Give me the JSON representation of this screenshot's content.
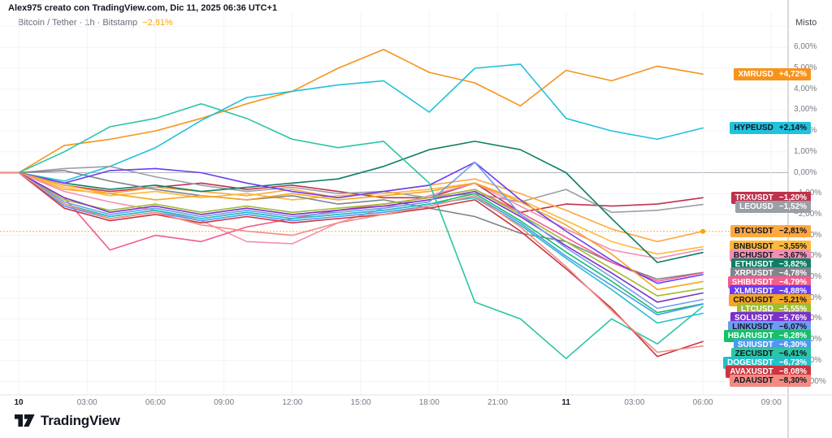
{
  "header": {
    "title": "Alex975 creato con TradingView.com, Dic 11, 2025 06:36 UTC+1"
  },
  "legend": {
    "symbol_info": "Bitcoin / Tether · 1h · Bitstamp",
    "change": "−2,81%",
    "change_color": "#F7A600"
  },
  "axis": {
    "mode": "Misto"
  },
  "footer": {
    "logo_text": "TradingView"
  },
  "chart_data": {
    "type": "line",
    "title": "Multi-symbol percent change comparison",
    "xlabel": "time",
    "ylabel": "percent change",
    "ylim": [
      -10.6,
      8.3
    ],
    "grid": {
      "horizontal_step_pct": 1,
      "vertical_step_hours": 3,
      "zero_line_color": "#B2B5BE",
      "grid_color": "#F0F3FA"
    },
    "x_hours": [
      0,
      2,
      4,
      6,
      8,
      10,
      12,
      14,
      16,
      18,
      20,
      22,
      24,
      26,
      28,
      30
    ],
    "x_ticks": [
      {
        "h": 0,
        "label": "10",
        "bold": true
      },
      {
        "h": 3,
        "label": "03:00",
        "bold": false
      },
      {
        "h": 6,
        "label": "06:00",
        "bold": false
      },
      {
        "h": 9,
        "label": "09:00",
        "bold": false
      },
      {
        "h": 12,
        "label": "12:00",
        "bold": false
      },
      {
        "h": 15,
        "label": "15:00",
        "bold": false
      },
      {
        "h": 18,
        "label": "18:00",
        "bold": false
      },
      {
        "h": 21,
        "label": "21:00",
        "bold": false
      },
      {
        "h": 24,
        "label": "11",
        "bold": true
      },
      {
        "h": 27,
        "label": "03:00",
        "bold": false
      },
      {
        "h": 30,
        "label": "06:00",
        "bold": false
      },
      {
        "h": 33,
        "label": "09:00",
        "bold": false
      }
    ],
    "y_ticks": [
      {
        "v": 6,
        "label": "6,00%"
      },
      {
        "v": 5,
        "label": "5,00%"
      },
      {
        "v": 4,
        "label": "4,00%"
      },
      {
        "v": 3,
        "label": "3,00%"
      },
      {
        "v": 2,
        "label": "2,00%"
      },
      {
        "v": 1,
        "label": "1,00%"
      },
      {
        "v": 0,
        "label": "0,00%"
      },
      {
        "v": -1,
        "label": "−1,00%"
      },
      {
        "v": -2,
        "label": "−2,00%"
      },
      {
        "v": -3,
        "label": "−3,00%"
      },
      {
        "v": -4,
        "label": "−4,00%"
      },
      {
        "v": -5,
        "label": "−5,00%"
      },
      {
        "v": -6,
        "label": "−6,00%"
      },
      {
        "v": -7,
        "label": "−7,00%"
      },
      {
        "v": -8,
        "label": "−8,00%"
      },
      {
        "v": -9,
        "label": "−9,00%"
      },
      {
        "v": -10,
        "label": "−10,00%"
      }
    ],
    "active_series": "BTCUSDT",
    "active_level_style": "dashed",
    "series": [
      {
        "name": "XMRUSD",
        "change": 4.72,
        "change_label": "+4,72%",
        "color": "#F7931A",
        "text": "#FFFFFF",
        "values": [
          0,
          1.3,
          1.6,
          2.0,
          2.6,
          3.3,
          3.9,
          5.0,
          5.9,
          4.8,
          4.3,
          3.2,
          4.9,
          4.4,
          5.1,
          4.72
        ]
      },
      {
        "name": "HYPEUSD",
        "change": 2.14,
        "change_label": "+2,14%",
        "color": "#22C1DC",
        "text": "#131722",
        "values": [
          0,
          -0.4,
          0.3,
          1.2,
          2.5,
          3.6,
          3.9,
          4.2,
          4.4,
          2.9,
          5.0,
          5.2,
          2.6,
          2.0,
          1.6,
          2.14
        ]
      },
      {
        "name": "TRXUSDT",
        "change": -1.2,
        "change_label": "−1,20%",
        "color": "#C0314B",
        "text": "#FFFFFF",
        "values": [
          0,
          -0.6,
          -0.9,
          -0.7,
          -0.5,
          -0.8,
          -0.6,
          -0.9,
          -1.2,
          -1.2,
          -0.5,
          -1.9,
          -1.5,
          -1.6,
          -1.5,
          -1.2
        ]
      },
      {
        "name": "LEOUSD",
        "change": -1.52,
        "change_label": "−1,52%",
        "color": "#9B9EA6",
        "text": "#FFFFFF",
        "values": [
          0,
          0.2,
          0.3,
          -0.2,
          -0.6,
          -0.9,
          -0.7,
          -1.0,
          -0.9,
          -1.2,
          -1.0,
          -1.4,
          -0.8,
          -1.9,
          -1.8,
          -1.52
        ]
      },
      {
        "name": "BTCUSDT",
        "change": -2.81,
        "change_label": "−2,81%",
        "color": "#FFA840",
        "text": "#131722",
        "values": [
          0,
          -0.8,
          -1.0,
          -0.7,
          -0.9,
          -1.1,
          -0.8,
          -1.2,
          -0.9,
          -0.6,
          -0.3,
          -1.0,
          -1.8,
          -2.7,
          -3.3,
          -2.81
        ]
      },
      {
        "name": "BNBUSDT",
        "change": -3.55,
        "change_label": "−3,55%",
        "color": "#FDB93C",
        "text": "#131722",
        "values": [
          0,
          -0.7,
          -1.1,
          -0.9,
          -1.2,
          -1.0,
          -1.3,
          -1.1,
          -1.0,
          -0.8,
          -0.5,
          -1.3,
          -2.3,
          -3.3,
          -3.9,
          -3.55
        ]
      },
      {
        "name": "BCHUSDT",
        "change": -3.67,
        "change_label": "−3,67%",
        "color": "#F48FB1",
        "text": "#131722",
        "values": [
          0,
          -0.9,
          -1.4,
          -1.8,
          -2.3,
          -3.3,
          -3.4,
          -2.4,
          -1.7,
          -1.1,
          -0.5,
          -1.6,
          -2.7,
          -3.7,
          -4.1,
          -3.67
        ]
      },
      {
        "name": "ETHUSDT",
        "change": -3.82,
        "change_label": "−3,82%",
        "color": "#0F7E64",
        "text": "#FFFFFF",
        "values": [
          0,
          -0.5,
          -0.8,
          -0.6,
          -0.9,
          -0.7,
          -0.5,
          -0.3,
          0.3,
          1.1,
          1.5,
          1.1,
          0.0,
          -2.2,
          -4.3,
          -3.82
        ]
      },
      {
        "name": "XRPUSDT",
        "change": -4.78,
        "change_label": "−4,78%",
        "color": "#80848D",
        "text": "#FFFFFF",
        "values": [
          0,
          0.1,
          -0.4,
          -0.8,
          -1.1,
          -1.3,
          -1.1,
          -1.5,
          -1.3,
          -1.7,
          -2.1,
          -2.9,
          -3.3,
          -4.3,
          -5.1,
          -4.78
        ]
      },
      {
        "name": "SHIBUSDT",
        "change": -4.79,
        "change_label": "−4,79%",
        "color": "#F25C8E",
        "text": "#FFFFFF",
        "values": [
          0,
          -1.2,
          -3.7,
          -3.0,
          -3.3,
          -2.6,
          -2.2,
          -1.8,
          -1.5,
          -1.2,
          -0.8,
          -1.9,
          -3.1,
          -4.3,
          -5.2,
          -4.79
        ]
      },
      {
        "name": "XLMUSDT",
        "change": -4.88,
        "change_label": "−4,88%",
        "color": "#6A3DF5",
        "text": "#FFFFFF",
        "values": [
          0,
          -0.5,
          0.1,
          0.2,
          0.0,
          -0.5,
          -0.9,
          -1.2,
          -0.9,
          -0.6,
          0.5,
          -1.3,
          -2.8,
          -4.2,
          -5.3,
          -4.88
        ]
      },
      {
        "name": "CROUSDT",
        "change": -5.21,
        "change_label": "−5,21%",
        "color": "#F5A623",
        "text": "#131722",
        "values": [
          0,
          -0.6,
          -1.0,
          -1.3,
          -1.1,
          -1.3,
          -1.0,
          -1.3,
          -1.1,
          -0.9,
          -0.5,
          -1.4,
          -2.5,
          -3.9,
          -5.6,
          -5.21
        ]
      },
      {
        "name": "LTCUSD",
        "change": -5.55,
        "change_label": "−5,55%",
        "color": "#A0BC2F",
        "text": "#FFFFFF",
        "values": [
          0,
          -1.3,
          -1.8,
          -1.5,
          -1.9,
          -1.6,
          -1.9,
          -1.7,
          -1.5,
          -1.2,
          -0.8,
          -2.0,
          -3.3,
          -4.6,
          -5.9,
          -5.55
        ]
      },
      {
        "name": "SOLUSDT",
        "change": -5.76,
        "change_label": "−5,76%",
        "color": "#7A32C9",
        "text": "#FFFFFF",
        "values": [
          0,
          -1.2,
          -1.9,
          -1.6,
          -2.0,
          -1.7,
          -2.0,
          -1.8,
          -1.6,
          -1.3,
          -0.9,
          -2.1,
          -3.5,
          -4.8,
          -6.2,
          -5.76
        ]
      },
      {
        "name": "LINKUSDT",
        "change": -6.07,
        "change_label": "−6,07%",
        "color": "#6E9BF4",
        "text": "#131722",
        "values": [
          0,
          -1.4,
          -2.0,
          -1.7,
          -2.1,
          -1.8,
          -2.1,
          -1.9,
          -1.7,
          -1.4,
          0.5,
          -2.0,
          -3.6,
          -5.0,
          -6.5,
          -6.07
        ]
      },
      {
        "name": "HBARUSDT",
        "change": -6.28,
        "change_label": "−6,28%",
        "color": "#17BE6B",
        "text": "#FFFFFF",
        "values": [
          0,
          -1.5,
          -2.1,
          -1.8,
          -2.2,
          -1.9,
          -2.2,
          -2.0,
          -1.8,
          -1.5,
          -1.0,
          -2.3,
          -3.8,
          -5.2,
          -6.7,
          -6.28
        ]
      },
      {
        "name": "SUIUSDT",
        "change": -6.3,
        "change_label": "−6,30%",
        "color": "#4C9AF0",
        "text": "#FFFFFF",
        "values": [
          0,
          -1.6,
          -2.2,
          -1.9,
          -2.3,
          -2.0,
          -2.3,
          -2.1,
          -1.9,
          -1.6,
          -1.1,
          -2.4,
          -4.0,
          -5.4,
          -6.8,
          -6.3
        ]
      },
      {
        "name": "ZECUSDT",
        "change": -6.41,
        "change_label": "−6,41%",
        "color": "#2CC5A5",
        "text": "#131722",
        "values": [
          0,
          1.0,
          2.2,
          2.6,
          3.3,
          2.6,
          1.6,
          1.2,
          1.5,
          -0.5,
          -6.2,
          -7.0,
          -8.9,
          -7.0,
          -8.2,
          -6.41
        ]
      },
      {
        "name": "DOGEUSDT",
        "change": -6.73,
        "change_label": "−6,73%",
        "color": "#25BFC9",
        "text": "#FFFFFF",
        "values": [
          0,
          -1.5,
          -2.1,
          -1.8,
          -2.2,
          -1.9,
          -2.2,
          -2.0,
          -1.8,
          -1.5,
          -1.2,
          -2.5,
          -4.1,
          -5.6,
          -7.2,
          -6.73
        ]
      },
      {
        "name": "AVAXUSDT",
        "change": -8.08,
        "change_label": "−8,08%",
        "color": "#CB3440",
        "text": "#FFFFFF",
        "values": [
          0,
          -1.7,
          -2.3,
          -2.0,
          -2.4,
          -2.1,
          -2.4,
          -2.2,
          -2.0,
          -1.7,
          -1.3,
          -2.8,
          -4.6,
          -6.5,
          -8.8,
          -8.08
        ]
      },
      {
        "name": "ADAUSDT",
        "change": -8.3,
        "change_label": "−8,30%",
        "color": "#F28B82",
        "text": "#131722",
        "values": [
          0,
          -1.5,
          -2.2,
          -1.9,
          -2.5,
          -2.8,
          -3.0,
          -2.4,
          -2.0,
          -1.6,
          -1.1,
          -2.6,
          -4.5,
          -6.6,
          -8.6,
          -8.3
        ]
      }
    ]
  }
}
